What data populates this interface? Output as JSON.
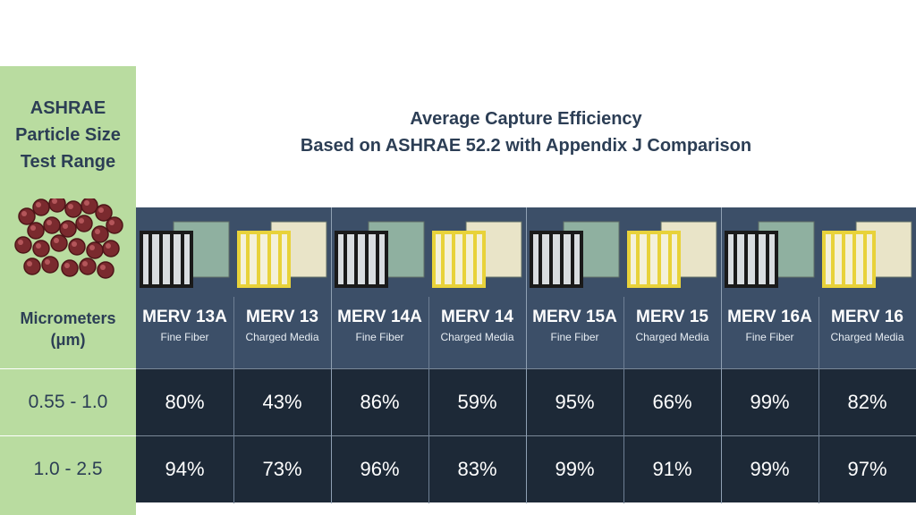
{
  "left": {
    "header_lines": [
      "ASHRAE",
      "Particle Size",
      "Test Range"
    ],
    "unit_lines": [
      "Micrometers",
      "(μm)"
    ]
  },
  "title_lines": [
    "Average Capture Efficiency",
    "Based on ASHRAE 52.2 with Appendix J Comparison"
  ],
  "colors": {
    "left_panel": "#b9dca0",
    "header_band": "#3c4f68",
    "data_rows": "#1d2937",
    "title_text": "#2c3e55",
    "fine_fiber_frame": "#1a1a1a",
    "charged_media_frame": "#e8d23a"
  },
  "chart_data": {
    "type": "table",
    "title": "Average Capture Efficiency Based on ASHRAE 52.2 with Appendix J Comparison",
    "row_header": "ASHRAE Particle Size Test Range",
    "row_unit": "Micrometers (μm)",
    "columns": [
      {
        "name": "MERV 13A",
        "sub": "Fine Fiber",
        "frame": "fine-fiber"
      },
      {
        "name": "MERV 13",
        "sub": "Charged Media",
        "frame": "charged-media"
      },
      {
        "name": "MERV 14A",
        "sub": "Fine Fiber",
        "frame": "fine-fiber"
      },
      {
        "name": "MERV 14",
        "sub": "Charged Media",
        "frame": "charged-media"
      },
      {
        "name": "MERV 15A",
        "sub": "Fine Fiber",
        "frame": "fine-fiber"
      },
      {
        "name": "MERV 15",
        "sub": "Charged Media",
        "frame": "charged-media"
      },
      {
        "name": "MERV 16A",
        "sub": "Fine Fiber",
        "frame": "fine-fiber"
      },
      {
        "name": "MERV 16",
        "sub": "Charged Media",
        "frame": "charged-media"
      }
    ],
    "rows": [
      {
        "range": "0.55 - 1.0",
        "values": [
          "80%",
          "43%",
          "86%",
          "59%",
          "95%",
          "66%",
          "99%",
          "82%"
        ]
      },
      {
        "range": "1.0 - 2.5",
        "values": [
          "94%",
          "73%",
          "96%",
          "83%",
          "99%",
          "91%",
          "99%",
          "97%"
        ]
      }
    ]
  }
}
